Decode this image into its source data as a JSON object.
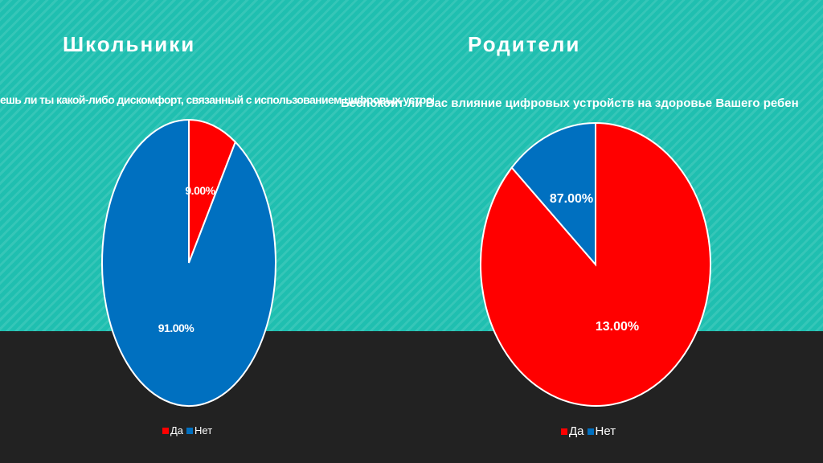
{
  "slide": {
    "left_title": "Школьники",
    "right_title": "Родители"
  },
  "colors": {
    "yes": "#ff0000",
    "no": "#0070c0",
    "teal": "#1fbfb0",
    "dark": "#222222"
  },
  "chart_data": [
    {
      "type": "pie",
      "title": "ешь ли ты какой-либо дискомфорт, связанный с использованием цифровых устройств?",
      "categories": [
        "Да",
        "Нет"
      ],
      "values": [
        9.0,
        91.0
      ],
      "data_labels": [
        "9.00%",
        "91.00%"
      ],
      "colors": [
        "#ff0000",
        "#0070c0"
      ],
      "legend": "bottom"
    },
    {
      "type": "pie",
      "title": "Беспокоит ли Вас влияние цифровых устройств на здоровье Вашего ребен",
      "categories": [
        "Да",
        "Нет"
      ],
      "values": [
        87.0,
        13.0
      ],
      "data_labels": [
        "87.00%",
        "13.00%"
      ],
      "colors": [
        "#ff0000",
        "#0070c0"
      ],
      "legend": "bottom"
    }
  ]
}
